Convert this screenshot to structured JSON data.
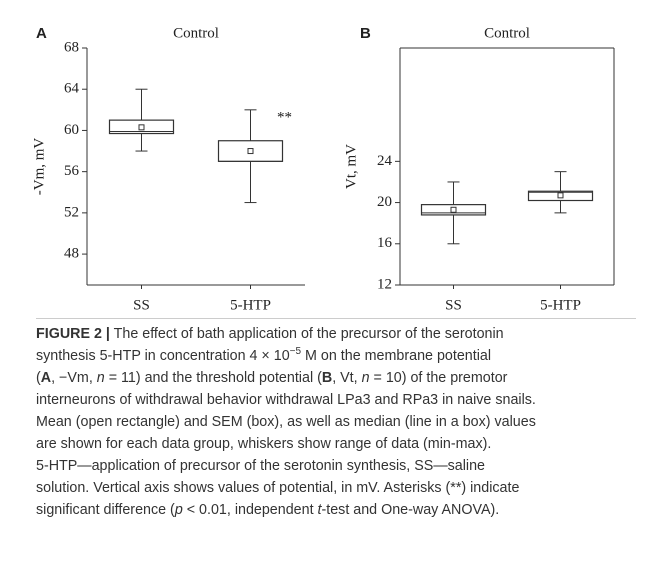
{
  "chart_data": [
    {
      "type": "box",
      "panel": "A",
      "title": "Control",
      "ylabel": "-Vm, mV",
      "categories": [
        "SS",
        "5-HTP"
      ],
      "boxes": [
        {
          "min": 58,
          "box_low": 59.7,
          "median": 59.9,
          "mean": 60.3,
          "box_high": 61,
          "max": 64
        },
        {
          "min": 53,
          "box_low": 57,
          "median": 57,
          "mean": 58,
          "box_high": 59,
          "max": 62
        }
      ],
      "annotation": "**",
      "ylim": [
        45,
        68
      ],
      "yticks": [
        48,
        52,
        56,
        60,
        64,
        68
      ],
      "frame": false
    },
    {
      "type": "box",
      "panel": "B",
      "title": "Control",
      "ylabel": "Vt, mV",
      "categories": [
        "SS",
        "5-HTP"
      ],
      "boxes": [
        {
          "min": 16,
          "box_low": 18.8,
          "median": 19,
          "mean": 19.3,
          "box_high": 19.8,
          "max": 22
        },
        {
          "min": 19,
          "box_low": 20.2,
          "median": 21,
          "mean": 20.7,
          "box_high": 21.1,
          "max": 23
        }
      ],
      "ylim": [
        12,
        35
      ],
      "yticks": [
        12,
        16,
        20,
        24
      ],
      "frame": true
    }
  ],
  "caption": {
    "lines": [
      [
        "FIGURE 2 |",
        " The effect of bath application of the precursor of the serotonin"
      ],
      [
        "synthesis 5-HTP in concentration 4 × 10",
        "−5",
        " M on the membrane potential"
      ],
      [
        "(",
        "A",
        ", −Vm, ",
        "n",
        " = 11) and the threshold potential (",
        "B",
        ", Vt, ",
        "n",
        " = 10) of the premotor"
      ],
      [
        "interneurons of withdrawal behavior withdrawal LPa3 and RPa3 in naive snails."
      ],
      [
        "Mean (open rectangle) and SEM (box), as well as median (line in a box) values"
      ],
      [
        "are shown for each data group, whiskers show range of data (min-max)."
      ],
      [
        "5-HTP—application of precursor of the serotonin synthesis, SS—saline"
      ],
      [
        "solution. Vertical axis shows values of potential, in mV. Asterisks (**) indicate"
      ],
      [
        "significant difference (",
        "p",
        " < 0.01, independent ",
        "t",
        "-test and One-way ANOVA)."
      ]
    ]
  }
}
